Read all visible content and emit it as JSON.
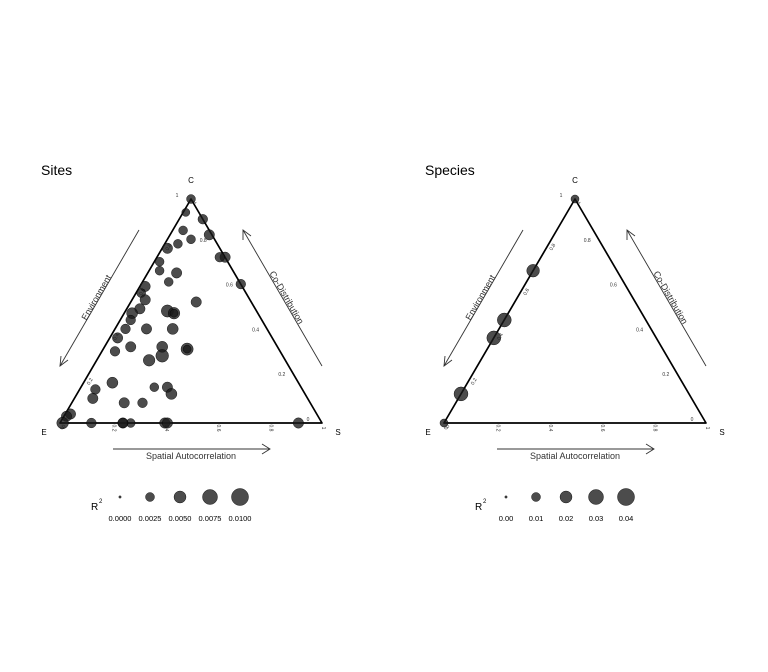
{
  "chart_data": [
    {
      "type": "scatter",
      "subtype": "ternary-bubble",
      "title": "Sites",
      "vertices": {
        "top": "C",
        "left": "E",
        "right": "S"
      },
      "arrows": {
        "left": "Environment",
        "right": "Co-Distribution",
        "bottom": "Spatial Autocorrelation"
      },
      "tick_labels": {
        "left_edge": [
          "0",
          "0.2",
          "0.4",
          "0.6",
          "0.8",
          "1"
        ],
        "right_edge": [
          "0",
          "0.2",
          "0.4",
          "0.6",
          "0.8",
          "1"
        ],
        "bottom_edge": [
          "0",
          "0.2",
          "0.4",
          "0.6",
          "0.8",
          "1"
        ]
      },
      "size_legend": {
        "title": "R",
        "title_superscript": "2",
        "values": [
          0.0,
          0.0025,
          0.005,
          0.0075,
          0.01
        ],
        "labels": [
          "0.0000",
          "0.0025",
          "0.0050",
          "0.0075",
          "0.0100"
        ]
      },
      "points": [
        {
          "c": 1.0,
          "e": 0.0,
          "s": 0.0,
          "r2": 0.002
        },
        {
          "c": 0.94,
          "e": 0.05,
          "s": 0.01,
          "r2": 0.0015
        },
        {
          "c": 0.91,
          "e": 0.0,
          "s": 0.09,
          "r2": 0.0025
        },
        {
          "c": 0.86,
          "e": 0.1,
          "s": 0.04,
          "r2": 0.002
        },
        {
          "c": 0.82,
          "e": 0.09,
          "s": 0.09,
          "r2": 0.002
        },
        {
          "c": 0.84,
          "e": 0.01,
          "s": 0.15,
          "r2": 0.003
        },
        {
          "c": 0.8,
          "e": 0.15,
          "s": 0.05,
          "r2": 0.002
        },
        {
          "c": 0.74,
          "e": 0.0,
          "s": 0.26,
          "r2": 0.003
        },
        {
          "c": 0.74,
          "e": 0.02,
          "s": 0.24,
          "r2": 0.0025
        },
        {
          "c": 0.78,
          "e": 0.2,
          "s": 0.02,
          "r2": 0.003
        },
        {
          "c": 0.72,
          "e": 0.26,
          "s": 0.02,
          "r2": 0.002
        },
        {
          "c": 0.67,
          "e": 0.22,
          "s": 0.11,
          "r2": 0.003
        },
        {
          "c": 0.68,
          "e": 0.28,
          "s": 0.04,
          "r2": 0.002
        },
        {
          "c": 0.63,
          "e": 0.27,
          "s": 0.1,
          "r2": 0.002
        },
        {
          "c": 0.61,
          "e": 0.37,
          "s": 0.02,
          "r2": 0.003
        },
        {
          "c": 0.62,
          "e": 0.0,
          "s": 0.38,
          "r2": 0.0025
        },
        {
          "c": 0.58,
          "e": 0.4,
          "s": 0.02,
          "r2": 0.002
        },
        {
          "c": 0.55,
          "e": 0.4,
          "s": 0.05,
          "r2": 0.003
        },
        {
          "c": 0.54,
          "e": 0.21,
          "s": 0.25,
          "r2": 0.003
        },
        {
          "c": 0.51,
          "e": 0.44,
          "s": 0.05,
          "r2": 0.003
        },
        {
          "c": 0.49,
          "e": 0.48,
          "s": 0.03,
          "r2": 0.0035
        },
        {
          "c": 0.5,
          "e": 0.34,
          "s": 0.16,
          "r2": 0.0045
        },
        {
          "c": 0.49,
          "e": 0.32,
          "s": 0.19,
          "r2": 0.004
        },
        {
          "c": 0.49,
          "e": 0.32,
          "s": 0.19,
          "r2": 0.0015
        },
        {
          "c": 0.46,
          "e": 0.5,
          "s": 0.04,
          "r2": 0.0025
        },
        {
          "c": 0.42,
          "e": 0.54,
          "s": 0.04,
          "r2": 0.0025
        },
        {
          "c": 0.42,
          "e": 0.46,
          "s": 0.12,
          "r2": 0.003
        },
        {
          "c": 0.42,
          "e": 0.36,
          "s": 0.22,
          "r2": 0.0035
        },
        {
          "c": 0.38,
          "e": 0.59,
          "s": 0.03,
          "r2": 0.003
        },
        {
          "c": 0.34,
          "e": 0.56,
          "s": 0.1,
          "r2": 0.003
        },
        {
          "c": 0.34,
          "e": 0.44,
          "s": 0.22,
          "r2": 0.0035
        },
        {
          "c": 0.33,
          "e": 0.35,
          "s": 0.32,
          "r2": 0.0045
        },
        {
          "c": 0.33,
          "e": 0.35,
          "s": 0.32,
          "r2": 0.0015
        },
        {
          "c": 0.32,
          "e": 0.63,
          "s": 0.05,
          "r2": 0.0025
        },
        {
          "c": 0.3,
          "e": 0.46,
          "s": 0.24,
          "r2": 0.005
        },
        {
          "c": 0.28,
          "e": 0.52,
          "s": 0.2,
          "r2": 0.004
        },
        {
          "c": 0.18,
          "e": 0.71,
          "s": 0.11,
          "r2": 0.0035
        },
        {
          "c": 0.16,
          "e": 0.56,
          "s": 0.28,
          "r2": 0.002
        },
        {
          "c": 0.16,
          "e": 0.51,
          "s": 0.33,
          "r2": 0.003
        },
        {
          "c": 0.15,
          "e": 0.79,
          "s": 0.06,
          "r2": 0.0025
        },
        {
          "c": 0.11,
          "e": 0.82,
          "s": 0.07,
          "r2": 0.003
        },
        {
          "c": 0.13,
          "e": 0.51,
          "s": 0.36,
          "r2": 0.0035
        },
        {
          "c": 0.09,
          "e": 0.71,
          "s": 0.2,
          "r2": 0.003
        },
        {
          "c": 0.09,
          "e": 0.64,
          "s": 0.27,
          "r2": 0.0025
        },
        {
          "c": 0.04,
          "e": 0.94,
          "s": 0.02,
          "r2": 0.003
        },
        {
          "c": 0.03,
          "e": 0.96,
          "s": 0.01,
          "r2": 0.003
        },
        {
          "c": 0.0,
          "e": 0.99,
          "s": 0.01,
          "r2": 0.004
        },
        {
          "c": 0.0,
          "e": 0.88,
          "s": 0.12,
          "r2": 0.0025
        },
        {
          "c": 0.0,
          "e": 0.73,
          "s": 0.27,
          "r2": 0.002
        },
        {
          "c": 0.0,
          "e": 0.76,
          "s": 0.24,
          "r2": 0.003
        },
        {
          "c": 0.0,
          "e": 0.76,
          "s": 0.24,
          "r2": 0.0025
        },
        {
          "c": 0.0,
          "e": 0.6,
          "s": 0.4,
          "r2": 0.003
        },
        {
          "c": 0.0,
          "e": 0.59,
          "s": 0.41,
          "r2": 0.003
        },
        {
          "c": 0.0,
          "e": 0.09,
          "s": 0.91,
          "r2": 0.003
        }
      ]
    },
    {
      "type": "scatter",
      "subtype": "ternary-bubble",
      "title": "Species",
      "vertices": {
        "top": "C",
        "left": "E",
        "right": "S"
      },
      "arrows": {
        "left": "Environment",
        "right": "Co-Distribution",
        "bottom": "Spatial Autocorrelation"
      },
      "tick_labels": {
        "left_edge": [
          "0",
          "0.2",
          "0.4",
          "0.6",
          "0.8",
          "1"
        ],
        "right_edge": [
          "0",
          "0.2",
          "0.4",
          "0.6",
          "0.8",
          "1"
        ],
        "bottom_edge": [
          "0",
          "0.2",
          "0.4",
          "0.6",
          "0.8",
          "1"
        ]
      },
      "size_legend": {
        "title": "R",
        "title_superscript": "2",
        "values": [
          0.0,
          0.01,
          0.02,
          0.03,
          0.04
        ],
        "labels": [
          "0.00",
          "0.01",
          "0.02",
          "0.03",
          "0.04"
        ]
      },
      "points": [
        {
          "c": 1.0,
          "e": 0.0,
          "s": 0.0,
          "r2": 0.006
        },
        {
          "c": 0.68,
          "e": 0.32,
          "s": 0.0,
          "r2": 0.02
        },
        {
          "c": 0.46,
          "e": 0.54,
          "s": 0.0,
          "r2": 0.025
        },
        {
          "c": 0.38,
          "e": 0.62,
          "s": 0.0,
          "r2": 0.025
        },
        {
          "c": 0.13,
          "e": 0.87,
          "s": 0.0,
          "r2": 0.025
        },
        {
          "c": 0.0,
          "e": 1.0,
          "s": 0.0,
          "r2": 0.006
        }
      ]
    }
  ]
}
